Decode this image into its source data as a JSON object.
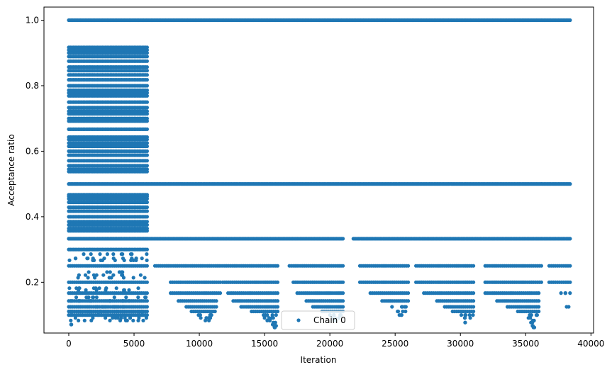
{
  "chart_data": {
    "type": "scatter",
    "xlabel": "Iteration",
    "ylabel": "Acceptance ratio",
    "xlim": [
      -1900,
      40200
    ],
    "ylim": [
      0.045,
      1.04
    ],
    "xticks": [
      0,
      5000,
      10000,
      15000,
      20000,
      25000,
      30000,
      35000,
      40000
    ],
    "yticks": [
      0.2,
      0.4,
      0.6,
      0.8,
      1.0
    ],
    "xtick_labels": [
      "0",
      "5000",
      "10000",
      "15000",
      "20000",
      "25000",
      "30000",
      "35000",
      "40000"
    ],
    "ytick_labels": [
      "0.2",
      "0.4",
      "0.6",
      "0.8",
      "1.0"
    ],
    "legend_position": "bottom-center",
    "color": "#1f77b4",
    "series": [
      {
        "name": "Chain 0",
        "bands": [
          {
            "y": 1.0,
            "x_ranges": [
              [
                0,
                38400
              ]
            ]
          },
          {
            "y": 0.5,
            "x_ranges": [
              [
                0,
                38400
              ]
            ]
          },
          {
            "y": 0.333,
            "x_ranges": [
              [
                0,
                21000
              ],
              [
                21800,
                38400
              ]
            ]
          },
          {
            "y": 0.25,
            "x_ranges": [
              [
                0,
                6000
              ],
              [
                6600,
                16000
              ],
              [
                16900,
                21000
              ],
              [
                22300,
                26000
              ],
              [
                26600,
                31000
              ],
              [
                31900,
                36200
              ],
              [
                36800,
                38400
              ]
            ]
          },
          {
            "y": 0.2,
            "x_ranges": [
              [
                0,
                6000
              ],
              [
                7800,
                11600
              ],
              [
                11800,
                16000
              ],
              [
                17200,
                21000
              ],
              [
                22300,
                26000
              ],
              [
                26600,
                31000
              ],
              [
                31900,
                36200
              ],
              [
                36800,
                38400
              ]
            ]
          },
          {
            "y": 0.167,
            "x_ranges": [
              [
                0,
                6000
              ],
              [
                7800,
                11600
              ],
              [
                12200,
                16000
              ],
              [
                17500,
                21000
              ],
              [
                23100,
                26000
              ],
              [
                27200,
                31000
              ],
              [
                31900,
                36000
              ],
              [
                37400,
                38400
              ]
            ]
          },
          {
            "y": 0.143,
            "x_ranges": [
              [
                0,
                6000
              ],
              [
                8400,
                11300
              ],
              [
                12600,
                16000
              ],
              [
                18200,
                21000
              ],
              [
                24000,
                26000
              ],
              [
                28200,
                31000
              ],
              [
                32800,
                36000
              ]
            ]
          },
          {
            "y": 0.125,
            "x_ranges": [
              [
                0,
                6000
              ],
              [
                9000,
                11300
              ],
              [
                13200,
                16000
              ],
              [
                18700,
                21000
              ],
              [
                24500,
                26000
              ],
              [
                28800,
                31000
              ],
              [
                33600,
                36000
              ],
              [
                38000,
                38400
              ]
            ]
          },
          {
            "y": 0.111,
            "x_ranges": [
              [
                0,
                6000
              ],
              [
                9400,
                11200
              ],
              [
                14000,
                16000
              ],
              [
                19400,
                21000
              ],
              [
                25000,
                26000
              ],
              [
                29400,
                31000
              ],
              [
                34400,
                36000
              ]
            ]
          },
          {
            "y": 0.1,
            "x_ranges": [
              [
                0,
                6000
              ],
              [
                9800,
                11100
              ],
              [
                14500,
                16000
              ],
              [
                19800,
                21000
              ],
              [
                25200,
                26000
              ],
              [
                29800,
                31000
              ],
              [
                35000,
                36000
              ]
            ]
          },
          {
            "y": 0.091,
            "x_ranges": [
              [
                10000,
                11000
              ],
              [
                14900,
                16000
              ],
              [
                20000,
                21000
              ],
              [
                30000,
                30800
              ],
              [
                35200,
                35800
              ]
            ]
          },
          {
            "y": 0.083,
            "x_ranges": [
              [
                10400,
                10900
              ],
              [
                15200,
                15900
              ],
              [
                20200,
                20800
              ],
              [
                35400,
                35700
              ]
            ]
          },
          {
            "y": 0.077,
            "x_ranges": [
              [
                15400,
                15900
              ],
              [
                30300,
                30400
              ],
              [
                35400,
                35600
              ]
            ]
          },
          {
            "y": 0.071,
            "x_ranges": [
              [
                0,
                400
              ],
              [
                15500,
                15900
              ]
            ]
          },
          {
            "y": 0.067,
            "x_ranges": [
              [
                15600,
                15900
              ],
              [
                35500,
                35600
              ]
            ]
          },
          {
            "y": 0.062,
            "x_ranges": [
              [
                15700,
                15800
              ],
              [
                35600,
                35700
              ]
            ]
          }
        ],
        "early_region": {
          "x_range": [
            0,
            6000
          ],
          "dense_levels": [
            0.917,
            0.909,
            0.9,
            0.889,
            0.875,
            0.857,
            0.846,
            0.833,
            0.818,
            0.8,
            0.786,
            0.778,
            0.769,
            0.75,
            0.733,
            0.722,
            0.714,
            0.7,
            0.692,
            0.667,
            0.643,
            0.636,
            0.625,
            0.615,
            0.6,
            0.588,
            0.571,
            0.556,
            0.545,
            0.538,
            0.467,
            0.462,
            0.455,
            0.444,
            0.429,
            0.417,
            0.4,
            0.385,
            0.375,
            0.364,
            0.357,
            0.333,
            0.3
          ],
          "sparse_levels": [
            0.286,
            0.273,
            0.267,
            0.231,
            0.222,
            0.214,
            0.182,
            0.176,
            0.154,
            0.143,
            0.125,
            0.111,
            0.1,
            0.091,
            0.083
          ]
        }
      }
    ]
  }
}
